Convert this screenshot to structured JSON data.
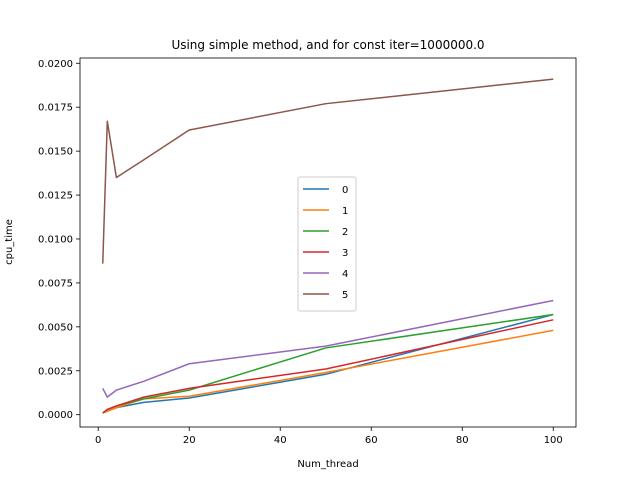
{
  "chart_data": {
    "type": "line",
    "title": "Using simple method, and for const iter=1000000.0",
    "xlabel": "Num_thread",
    "ylabel": "cpu_time",
    "xlim": [
      -4,
      105
    ],
    "ylim": [
      -0.0007,
      0.0203
    ],
    "xticks": [
      0,
      20,
      40,
      60,
      80,
      100
    ],
    "xtick_labels": [
      "0",
      "20",
      "40",
      "60",
      "80",
      "100"
    ],
    "yticks": [
      0.0,
      0.0025,
      0.005,
      0.0075,
      0.01,
      0.0125,
      0.015,
      0.0175,
      0.02
    ],
    "ytick_labels": [
      "0.0000",
      "0.0025",
      "0.0050",
      "0.0075",
      "0.0100",
      "0.0125",
      "0.0150",
      "0.0175",
      "0.0200"
    ],
    "grid": false,
    "legend_position": "center",
    "x": [
      1,
      2,
      4,
      10,
      20,
      50,
      100
    ],
    "series": [
      {
        "name": "0",
        "color": "#1f77b4",
        "values": [
          0.0001,
          0.0002,
          0.0004,
          0.0007,
          0.00095,
          0.0023,
          0.0057
        ]
      },
      {
        "name": "1",
        "color": "#ff7f0e",
        "values": [
          0.0001,
          0.0002,
          0.0004,
          0.0009,
          0.00105,
          0.0024,
          0.0048
        ]
      },
      {
        "name": "2",
        "color": "#2ca02c",
        "values": [
          0.0001,
          0.0003,
          0.0005,
          0.0009,
          0.0014,
          0.0038,
          0.0057
        ]
      },
      {
        "name": "3",
        "color": "#d62728",
        "values": [
          0.0001,
          0.0003,
          0.0005,
          0.001,
          0.0015,
          0.0026,
          0.0054
        ]
      },
      {
        "name": "4",
        "color": "#9467bd",
        "values": [
          0.0015,
          0.001,
          0.0014,
          0.0019,
          0.0029,
          0.0039,
          0.0065
        ]
      },
      {
        "name": "5",
        "color": "#8c564b",
        "values": [
          0.0086,
          0.0167,
          0.0135,
          0.0145,
          0.0162,
          0.0177,
          0.0191
        ]
      }
    ]
  }
}
